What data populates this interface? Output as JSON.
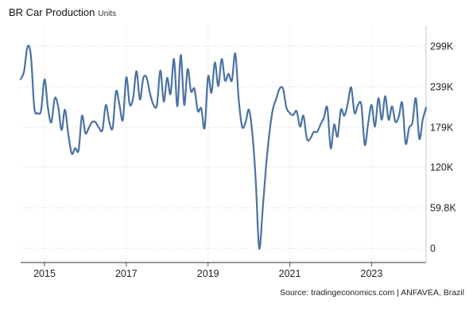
{
  "chart_data": {
    "type": "line",
    "title": "BR Car Production",
    "subtitle": "Units",
    "source": "Source: tradingeconomics.com | ANFAVEA, Brazil",
    "ylim": [
      0,
      310000
    ],
    "y_ticks": [
      {
        "value": 0,
        "label": "0"
      },
      {
        "value": 59800,
        "label": "59.8K"
      },
      {
        "value": 120000,
        "label": "120K"
      },
      {
        "value": 179000,
        "label": "179K"
      },
      {
        "value": 239000,
        "label": "239K"
      },
      {
        "value": 299000,
        "label": "299K"
      }
    ],
    "x_ticks": [
      "2015",
      "2017",
      "2019",
      "2021",
      "2023"
    ],
    "x_range": [
      "2014-06",
      "2024-05"
    ],
    "grid": true,
    "line_color": "#4a72a3",
    "series": [
      {
        "x": [
          "2014-06",
          "2014-07",
          "2014-08",
          "2014-09",
          "2014-10",
          "2014-11",
          "2014-12",
          "2015-01",
          "2015-02",
          "2015-03",
          "2015-04",
          "2015-05",
          "2015-06",
          "2015-07",
          "2015-08",
          "2015-09",
          "2015-10",
          "2015-11",
          "2015-12",
          "2016-01",
          "2016-02",
          "2016-03",
          "2016-04",
          "2016-05",
          "2016-06",
          "2016-07",
          "2016-08",
          "2016-09",
          "2016-10",
          "2016-11",
          "2016-12",
          "2017-01",
          "2017-02",
          "2017-03",
          "2017-04",
          "2017-05",
          "2017-06",
          "2017-07",
          "2017-08",
          "2017-09",
          "2017-10",
          "2017-11",
          "2017-12",
          "2018-01",
          "2018-02",
          "2018-03",
          "2018-04",
          "2018-05",
          "2018-06",
          "2018-07",
          "2018-08",
          "2018-09",
          "2018-10",
          "2018-11",
          "2018-12",
          "2019-01",
          "2019-02",
          "2019-03",
          "2019-04",
          "2019-05",
          "2019-06",
          "2019-07",
          "2019-08",
          "2019-09",
          "2019-10",
          "2019-11",
          "2019-12",
          "2020-01",
          "2020-02",
          "2020-03",
          "2020-04",
          "2020-05",
          "2020-06",
          "2020-07",
          "2020-08",
          "2020-09",
          "2020-10",
          "2020-11",
          "2020-12",
          "2021-01",
          "2021-02",
          "2021-03",
          "2021-04",
          "2021-05",
          "2021-06",
          "2021-07",
          "2021-08",
          "2021-09",
          "2021-10",
          "2021-11",
          "2021-12",
          "2022-01",
          "2022-02",
          "2022-03",
          "2022-04",
          "2022-05",
          "2022-06",
          "2022-07",
          "2022-08",
          "2022-09",
          "2022-10",
          "2022-11",
          "2022-12",
          "2023-01",
          "2023-02",
          "2023-03",
          "2023-04",
          "2023-05",
          "2023-06",
          "2023-07",
          "2023-08",
          "2023-09",
          "2023-10",
          "2023-11",
          "2023-12",
          "2024-01",
          "2024-02",
          "2024-03",
          "2024-04",
          "2024-05"
        ],
        "values": [
          250000,
          262000,
          298000,
          285000,
          208000,
          200000,
          204000,
          250000,
          208000,
          186000,
          222000,
          210000,
          175000,
          205000,
          168000,
          140000,
          148000,
          145000,
          196000,
          170000,
          178000,
          187000,
          186000,
          178000,
          175000,
          212000,
          187000,
          178000,
          232000,
          212000,
          190000,
          253000,
          213000,
          222000,
          262000,
          220000,
          252000,
          252000,
          228000,
          212000,
          212000,
          263000,
          217000,
          252000,
          228000,
          280000,
          210000,
          286000,
          212000,
          265000,
          232000,
          236000,
          203000,
          207000,
          178000,
          254000,
          230000,
          275000,
          240000,
          280000,
          248000,
          258000,
          248000,
          288000,
          220000,
          180000,
          186000,
          205000,
          170000,
          100000,
          0,
          55000,
          120000,
          170000,
          205000,
          221000,
          236000,
          236000,
          208000,
          200000,
          197000,
          203000,
          180000,
          196000,
          162000,
          162000,
          172000,
          172000,
          183000,
          193000,
          208000,
          148000,
          183000,
          165000,
          205000,
          196000,
          214000,
          238000,
          200000,
          212000,
          212000,
          153000,
          185000,
          212000,
          180000,
          222000,
          190000,
          225000,
          190000,
          210000,
          187000,
          195000,
          215000,
          155000,
          178000,
          186000,
          222000,
          162000,
          190000,
          208000
        ]
      }
    ]
  }
}
